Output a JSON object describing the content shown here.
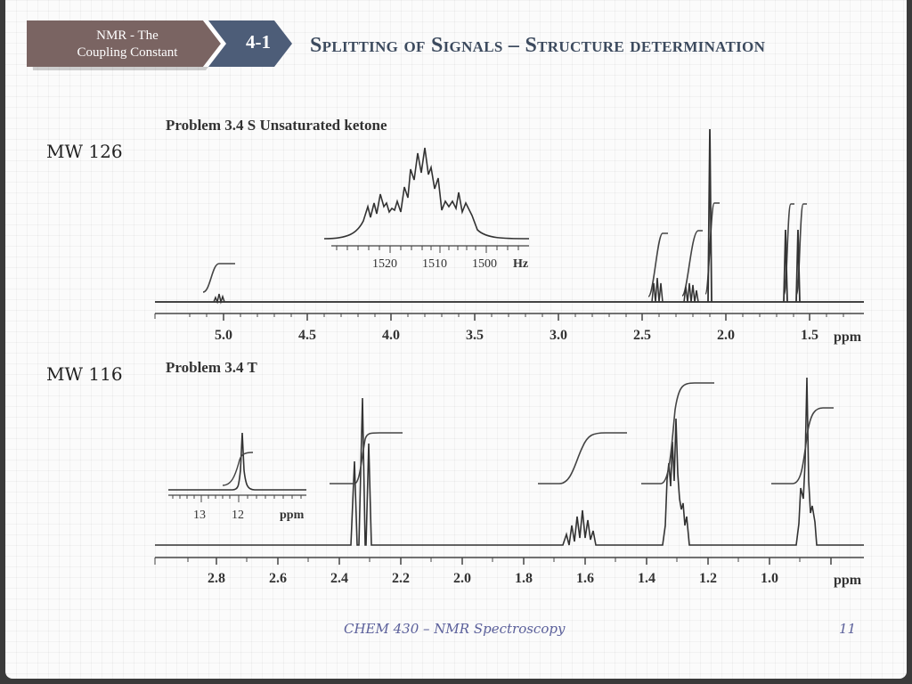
{
  "breadcrumb": {
    "section": "NMR - The\nCoupling Constant",
    "number": "4-1",
    "section_color": "#7a6462",
    "number_color": "#4d5d78"
  },
  "title": "Splitting of Signals – Structure determination",
  "spectrum_a": {
    "mw_label": "MW 126",
    "caption": "Problem 3.4 S Unsaturated ketone",
    "axis_unit": "ppm",
    "ticks": [
      "5.0",
      "4.5",
      "4.0",
      "3.5",
      "3.0",
      "2.5",
      "2.0",
      "1.5"
    ],
    "inset": {
      "ticks": [
        "1520",
        "1510",
        "1500"
      ],
      "unit": "Hz"
    }
  },
  "spectrum_b": {
    "mw_label": "MW 116",
    "caption": "Problem 3.4 T",
    "axis_unit": "ppm",
    "ticks": [
      "2.8",
      "2.6",
      "2.4",
      "2.2",
      "2.0",
      "1.8",
      "1.6",
      "1.4",
      "1.2",
      "1.0"
    ],
    "inset": {
      "ticks": [
        "13",
        "12"
      ],
      "unit": "ppm"
    }
  },
  "footer": "CHEM 430 – NMR Spectroscopy",
  "page_number": "11"
}
